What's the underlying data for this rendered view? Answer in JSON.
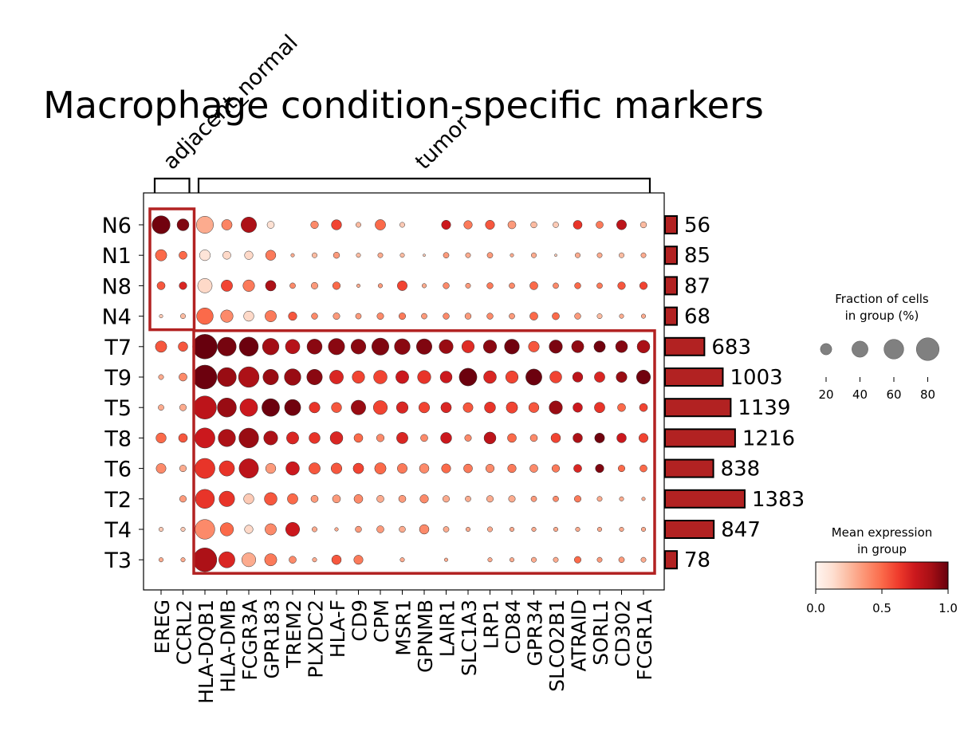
{
  "chart_data": {
    "type": "dotplot",
    "title": "Macrophage condition-specific markers",
    "groups": [
      "N6",
      "N1",
      "N8",
      "N4",
      "T7",
      "T9",
      "T5",
      "T8",
      "T6",
      "T2",
      "T4",
      "T3"
    ],
    "genes": [
      "EREG",
      "CCRL2",
      "HLA-DQB1",
      "HLA-DMB",
      "FCGR3A",
      "GPR183",
      "TREM2",
      "PLXDC2",
      "HLA-F",
      "CD9",
      "CPM",
      "MSR1",
      "GPNMB",
      "LAIR1",
      "SLC1A3",
      "LRP1",
      "CD84",
      "GPR34",
      "SLCO2B1",
      "ATRAID",
      "SORL1",
      "CD302",
      "FCGR1A"
    ],
    "gene_brackets": [
      {
        "label": "adjacent_normal",
        "genes": [
          "EREG",
          "CCRL2"
        ]
      },
      {
        "label": "tumor",
        "genes": [
          "HLA-DQB1",
          "FCGR1A"
        ]
      }
    ],
    "highlight_boxes": [
      {
        "groups": [
          "N6",
          "N4"
        ],
        "genes": [
          "EREG",
          "CCRL2"
        ]
      },
      {
        "groups": [
          "T7",
          "T3"
        ],
        "genes": [
          "HLA-DQB1",
          "FCGR1A"
        ]
      }
    ],
    "fraction_pct": [
      [
        50,
        22,
        45,
        17,
        37,
        8,
        0,
        9,
        16,
        4,
        17,
        4,
        0,
        13,
        11,
        13,
        10,
        6,
        5,
        12,
        8,
        15,
        6
      ],
      [
        20,
        10,
        18,
        10,
        11,
        16,
        2,
        4,
        6,
        3,
        4,
        3,
        1,
        5,
        4,
        5,
        2,
        4,
        1,
        4,
        4,
        4,
        4
      ],
      [
        10,
        9,
        32,
        20,
        21,
        17,
        5,
        7,
        9,
        2,
        3,
        15,
        3,
        6,
        4,
        6,
        5,
        10,
        5,
        6,
        5,
        9,
        9
      ],
      [
        2,
        4,
        42,
        24,
        16,
        20,
        11,
        6,
        7,
        5,
        7,
        7,
        5,
        6,
        6,
        6,
        5,
        10,
        8,
        6,
        4,
        3,
        3
      ],
      [
        20,
        14,
        93,
        54,
        56,
        42,
        32,
        35,
        41,
        34,
        45,
        38,
        37,
        30,
        24,
        27,
        34,
        18,
        27,
        23,
        20,
        22,
        25
      ],
      [
        4,
        10,
        88,
        55,
        65,
        37,
        42,
        37,
        29,
        24,
        28,
        26,
        27,
        22,
        48,
        25,
        24,
        40,
        22,
        16,
        17,
        18,
        30
      ],
      [
        5,
        7,
        82,
        56,
        48,
        48,
        40,
        18,
        16,
        33,
        30,
        21,
        18,
        17,
        15,
        19,
        20,
        16,
        27,
        14,
        17,
        10,
        10
      ],
      [
        16,
        12,
        62,
        46,
        60,
        30,
        23,
        19,
        25,
        12,
        9,
        20,
        8,
        19,
        7,
        22,
        12,
        8,
        14,
        14,
        15,
        14,
        13
      ],
      [
        15,
        7,
        62,
        36,
        58,
        16,
        28,
        20,
        18,
        17,
        20,
        15,
        14,
        13,
        12,
        11,
        11,
        10,
        9,
        10,
        11,
        7,
        8
      ],
      [
        0,
        7,
        56,
        37,
        16,
        25,
        17,
        8,
        10,
        12,
        8,
        8,
        11,
        7,
        5,
        7,
        7,
        5,
        5,
        7,
        4,
        3,
        2
      ],
      [
        3,
        3,
        60,
        27,
        11,
        20,
        30,
        4,
        2,
        6,
        8,
        6,
        14,
        5,
        3,
        4,
        3,
        3,
        3,
        3,
        3,
        3,
        3
      ],
      [
        3,
        3,
        87,
        40,
        30,
        23,
        8,
        3,
        14,
        13,
        0,
        3,
        0,
        2,
        0,
        3,
        3,
        4,
        4,
        7,
        4,
        5,
        4
      ]
    ],
    "mean_expression": [
      [
        0.98,
        0.95,
        0.3,
        0.42,
        0.85,
        0.12,
        0,
        0.4,
        0.6,
        0.25,
        0.5,
        0.2,
        0,
        0.75,
        0.45,
        0.55,
        0.35,
        0.25,
        0.2,
        0.65,
        0.45,
        0.8,
        0.25
      ],
      [
        0.5,
        0.5,
        0.1,
        0.15,
        0.15,
        0.45,
        0.3,
        0.25,
        0.35,
        0.25,
        0.3,
        0.25,
        0.2,
        0.35,
        0.3,
        0.35,
        0.3,
        0.3,
        0.2,
        0.3,
        0.3,
        0.25,
        0.3
      ],
      [
        0.55,
        0.7,
        0.15,
        0.6,
        0.45,
        0.85,
        0.4,
        0.35,
        0.5,
        0.3,
        0.35,
        0.6,
        0.3,
        0.4,
        0.35,
        0.45,
        0.4,
        0.5,
        0.4,
        0.5,
        0.45,
        0.55,
        0.6
      ],
      [
        0.2,
        0.25,
        0.5,
        0.4,
        0.15,
        0.45,
        0.55,
        0.4,
        0.35,
        0.35,
        0.4,
        0.45,
        0.35,
        0.4,
        0.35,
        0.4,
        0.35,
        0.5,
        0.5,
        0.35,
        0.25,
        0.3,
        0.3
      ],
      [
        0.55,
        0.55,
        1.0,
        0.97,
        0.99,
        0.88,
        0.82,
        0.93,
        0.93,
        0.93,
        0.95,
        0.93,
        0.95,
        0.9,
        0.68,
        0.93,
        0.98,
        0.55,
        0.96,
        0.92,
        0.98,
        0.94,
        0.86
      ],
      [
        0.3,
        0.4,
        0.99,
        0.9,
        0.85,
        0.9,
        0.9,
        0.93,
        0.7,
        0.6,
        0.6,
        0.75,
        0.65,
        0.75,
        0.99,
        0.7,
        0.6,
        0.99,
        0.6,
        0.8,
        0.7,
        0.9,
        0.98
      ],
      [
        0.3,
        0.3,
        0.8,
        0.9,
        0.75,
        0.99,
        0.98,
        0.65,
        0.55,
        0.9,
        0.6,
        0.7,
        0.6,
        0.7,
        0.55,
        0.65,
        0.6,
        0.55,
        0.9,
        0.75,
        0.65,
        0.5,
        0.6
      ],
      [
        0.5,
        0.55,
        0.75,
        0.85,
        0.9,
        0.85,
        0.7,
        0.65,
        0.7,
        0.5,
        0.4,
        0.7,
        0.4,
        0.75,
        0.4,
        0.8,
        0.5,
        0.4,
        0.6,
        0.85,
        0.98,
        0.75,
        0.6
      ],
      [
        0.4,
        0.3,
        0.65,
        0.65,
        0.8,
        0.35,
        0.75,
        0.55,
        0.55,
        0.6,
        0.5,
        0.45,
        0.4,
        0.5,
        0.45,
        0.4,
        0.45,
        0.4,
        0.45,
        0.7,
        0.95,
        0.5,
        0.5
      ],
      [
        0.2,
        0.35,
        0.65,
        0.65,
        0.2,
        0.55,
        0.5,
        0.35,
        0.35,
        0.4,
        0.3,
        0.35,
        0.4,
        0.3,
        0.3,
        0.3,
        0.3,
        0.35,
        0.4,
        0.45,
        0.3,
        0.3,
        0.3
      ],
      [
        0.2,
        0.2,
        0.4,
        0.5,
        0.15,
        0.4,
        0.75,
        0.3,
        0.3,
        0.35,
        0.35,
        0.3,
        0.4,
        0.3,
        0.3,
        0.3,
        0.3,
        0.3,
        0.3,
        0.3,
        0.3,
        0.3,
        0.3
      ],
      [
        0.3,
        0.3,
        0.85,
        0.7,
        0.3,
        0.45,
        0.4,
        0.3,
        0.55,
        0.45,
        0,
        0.3,
        0,
        0.3,
        0,
        0.3,
        0.3,
        0.3,
        0.3,
        0.5,
        0.35,
        0.35,
        0.3
      ]
    ],
    "group_counts": [
      56,
      85,
      87,
      68,
      683,
      1003,
      1139,
      1216,
      838,
      1383,
      847,
      78
    ],
    "size_legend": {
      "title_lines": [
        "Fraction of cells",
        "in group (%)"
      ],
      "values": [
        20,
        40,
        60,
        80
      ]
    },
    "color_legend": {
      "title_lines": [
        "Mean expression",
        "in group"
      ],
      "ticks": [
        "0.0",
        "0.5",
        "1.0"
      ],
      "range": [
        0,
        1
      ],
      "colormap": "Reds"
    },
    "colors": {
      "bar_fill": "#b22222",
      "highlight_stroke": "#b22222",
      "size_legend_dot": "#808080"
    }
  }
}
